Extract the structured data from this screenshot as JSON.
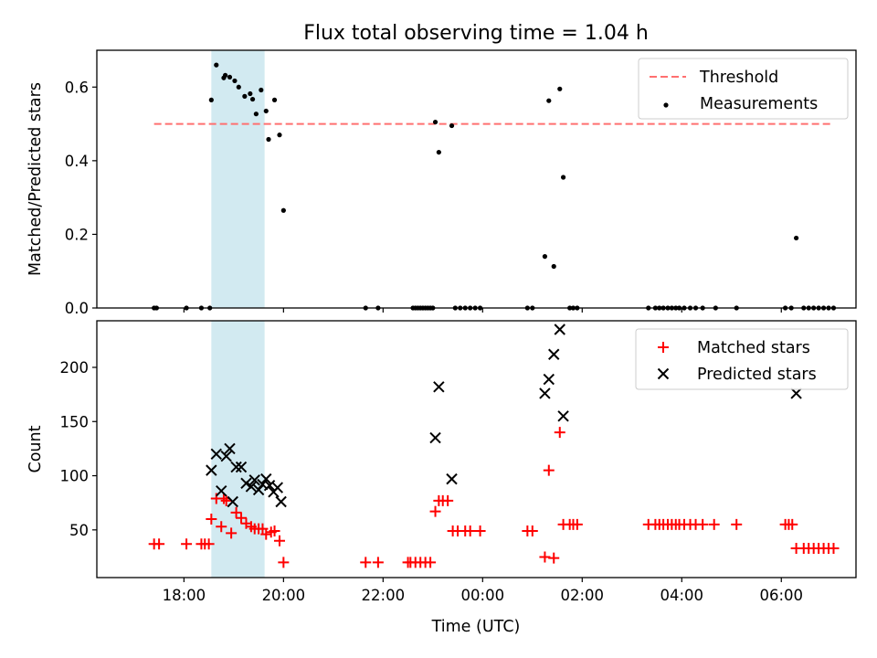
{
  "chart_data": {
    "title": "Flux total observing time = 1.04 h",
    "xlabel": "Time (UTC)",
    "x_unit": "hours since 00:00 UTC (negative = previous evening)",
    "x_range": [
      -7.75,
      7.5
    ],
    "x_ticks": [
      -6,
      -4,
      -2,
      0,
      2,
      4,
      6
    ],
    "x_tick_labels": [
      "18:00",
      "20:00",
      "22:00",
      "00:00",
      "02:00",
      "04:00",
      "06:00"
    ],
    "highlight_span": [
      -5.45,
      -4.38
    ],
    "highlight_color": "#add8e6",
    "panels": [
      {
        "id": "top",
        "type": "scatter",
        "ylabel": "Matched/Predicted stars",
        "ylim": [
          0,
          0.7
        ],
        "yticks": [
          0.0,
          0.2,
          0.4,
          0.6
        ],
        "ytick_labels": [
          "0.0",
          "0.2",
          "0.4",
          "0.6"
        ],
        "legend": {
          "position": "top-right",
          "entries": [
            {
              "label": "Threshold",
              "style": "dashed-line",
              "color": "#ff7070"
            },
            {
              "label": "Measurements",
              "style": "dot",
              "color": "#000000"
            }
          ]
        },
        "threshold": {
          "label": "Threshold",
          "y": 0.5,
          "x_from": -6.6,
          "x_to": 7.0,
          "color": "#ff7070"
        },
        "measurements": {
          "label": "Measurements",
          "color": "#000000",
          "points": [
            [
              -6.6,
              0
            ],
            [
              -6.55,
              0
            ],
            [
              -5.95,
              0
            ],
            [
              -5.65,
              0
            ],
            [
              -5.48,
              0
            ],
            [
              -5.45,
              0.565
            ],
            [
              -5.35,
              0.66
            ],
            [
              -5.2,
              0.625
            ],
            [
              -5.17,
              0.632
            ],
            [
              -5.08,
              0.627
            ],
            [
              -4.98,
              0.617
            ],
            [
              -4.9,
              0.6
            ],
            [
              -4.78,
              0.575
            ],
            [
              -4.67,
              0.582
            ],
            [
              -4.62,
              0.567
            ],
            [
              -4.55,
              0.527
            ],
            [
              -4.45,
              0.592
            ],
            [
              -4.35,
              0.535
            ],
            [
              -4.3,
              0.458
            ],
            [
              -4.18,
              0.565
            ],
            [
              -4.08,
              0.47
            ],
            [
              -4.0,
              0.265
            ],
            [
              -2.35,
              0
            ],
            [
              -2.1,
              0
            ],
            [
              -1.4,
              0
            ],
            [
              -1.35,
              0
            ],
            [
              -1.3,
              0
            ],
            [
              -1.25,
              0
            ],
            [
              -1.2,
              0
            ],
            [
              -1.15,
              0
            ],
            [
              -1.1,
              0
            ],
            [
              -1.05,
              0
            ],
            [
              -1.0,
              0
            ],
            [
              -0.95,
              0.505
            ],
            [
              -0.88,
              0.423
            ],
            [
              -0.62,
              0.495
            ],
            [
              -0.55,
              0
            ],
            [
              -0.45,
              0
            ],
            [
              -0.35,
              0
            ],
            [
              -0.25,
              0
            ],
            [
              -0.15,
              0
            ],
            [
              -0.05,
              0
            ],
            [
              0.9,
              0
            ],
            [
              1.0,
              0
            ],
            [
              1.25,
              0.14
            ],
            [
              1.33,
              0.563
            ],
            [
              1.43,
              0.113
            ],
            [
              1.55,
              0.595
            ],
            [
              1.62,
              0.355
            ],
            [
              1.75,
              0
            ],
            [
              1.82,
              0
            ],
            [
              1.9,
              0
            ],
            [
              3.33,
              0
            ],
            [
              3.47,
              0
            ],
            [
              3.55,
              0
            ],
            [
              3.63,
              0
            ],
            [
              3.72,
              0
            ],
            [
              3.8,
              0
            ],
            [
              3.88,
              0
            ],
            [
              3.95,
              0
            ],
            [
              4.05,
              0
            ],
            [
              4.17,
              0
            ],
            [
              4.28,
              0
            ],
            [
              4.42,
              0
            ],
            [
              4.68,
              0
            ],
            [
              5.1,
              0
            ],
            [
              6.08,
              0
            ],
            [
              6.2,
              0
            ],
            [
              6.3,
              0.19
            ],
            [
              6.45,
              0
            ],
            [
              6.55,
              0
            ],
            [
              6.65,
              0
            ],
            [
              6.75,
              0
            ],
            [
              6.85,
              0
            ],
            [
              6.95,
              0
            ],
            [
              7.05,
              0
            ]
          ]
        }
      },
      {
        "id": "bottom",
        "type": "scatter",
        "ylabel": "Count",
        "ylim": [
          6,
          243
        ],
        "yticks": [
          50,
          100,
          150,
          200
        ],
        "ytick_labels": [
          "50",
          "100",
          "150",
          "200"
        ],
        "legend": {
          "position": "top-right",
          "entries": [
            {
              "label": "Matched stars",
              "style": "plus",
              "color": "#ff0000"
            },
            {
              "label": "Predicted stars",
              "style": "x",
              "color": "#000000"
            }
          ]
        },
        "series": [
          {
            "name": "Matched stars",
            "marker": "plus",
            "color": "#ff0000",
            "points": [
              [
                -6.6,
                37
              ],
              [
                -6.5,
                37
              ],
              [
                -5.95,
                37
              ],
              [
                -5.65,
                37
              ],
              [
                -5.58,
                37
              ],
              [
                -5.5,
                37
              ],
              [
                -5.45,
                60
              ],
              [
                -5.35,
                79
              ],
              [
                -5.25,
                53
              ],
              [
                -5.2,
                79
              ],
              [
                -5.15,
                77
              ],
              [
                -5.05,
                47
              ],
              [
                -4.95,
                66
              ],
              [
                -4.85,
                61
              ],
              [
                -4.75,
                56
              ],
              [
                -4.65,
                53
              ],
              [
                -4.58,
                51
              ],
              [
                -4.5,
                51
              ],
              [
                -4.42,
                51
              ],
              [
                -4.35,
                46
              ],
              [
                -4.25,
                48
              ],
              [
                -4.18,
                49
              ],
              [
                -4.08,
                40
              ],
              [
                -4.0,
                20
              ],
              [
                -2.35,
                20
              ],
              [
                -2.1,
                20
              ],
              [
                -1.5,
                20
              ],
              [
                -1.45,
                20
              ],
              [
                -1.35,
                20
              ],
              [
                -1.25,
                20
              ],
              [
                -1.15,
                20
              ],
              [
                -1.05,
                20
              ],
              [
                -0.95,
                67
              ],
              [
                -0.88,
                77
              ],
              [
                -0.8,
                77
              ],
              [
                -0.7,
                77
              ],
              [
                -0.6,
                49
              ],
              [
                -0.5,
                49
              ],
              [
                -0.35,
                49
              ],
              [
                -0.25,
                49
              ],
              [
                -0.05,
                49
              ],
              [
                0.9,
                49
              ],
              [
                1.0,
                49
              ],
              [
                1.25,
                25
              ],
              [
                1.33,
                105
              ],
              [
                1.43,
                24
              ],
              [
                1.55,
                140
              ],
              [
                1.62,
                55
              ],
              [
                1.75,
                55
              ],
              [
                1.82,
                55
              ],
              [
                1.9,
                55
              ],
              [
                3.33,
                55
              ],
              [
                3.47,
                55
              ],
              [
                3.55,
                55
              ],
              [
                3.63,
                55
              ],
              [
                3.72,
                55
              ],
              [
                3.8,
                55
              ],
              [
                3.88,
                55
              ],
              [
                3.95,
                55
              ],
              [
                4.05,
                55
              ],
              [
                4.17,
                55
              ],
              [
                4.28,
                55
              ],
              [
                4.42,
                55
              ],
              [
                4.65,
                55
              ],
              [
                5.1,
                55
              ],
              [
                6.08,
                55
              ],
              [
                6.15,
                55
              ],
              [
                6.22,
                55
              ],
              [
                6.3,
                33
              ],
              [
                6.45,
                33
              ],
              [
                6.55,
                33
              ],
              [
                6.65,
                33
              ],
              [
                6.75,
                33
              ],
              [
                6.85,
                33
              ],
              [
                6.95,
                33
              ],
              [
                7.05,
                33
              ]
            ]
          },
          {
            "name": "Predicted stars",
            "marker": "x",
            "color": "#000000",
            "points": [
              [
                -5.45,
                105
              ],
              [
                -5.35,
                120
              ],
              [
                -5.25,
                86
              ],
              [
                -5.15,
                118
              ],
              [
                -5.08,
                125
              ],
              [
                -5.02,
                76
              ],
              [
                -4.95,
                108
              ],
              [
                -4.85,
                108
              ],
              [
                -4.75,
                93
              ],
              [
                -4.65,
                90
              ],
              [
                -4.58,
                96
              ],
              [
                -4.5,
                87
              ],
              [
                -4.42,
                92
              ],
              [
                -4.35,
                97
              ],
              [
                -4.28,
                91
              ],
              [
                -4.2,
                85
              ],
              [
                -4.12,
                89
              ],
              [
                -4.05,
                76
              ],
              [
                -0.95,
                135
              ],
              [
                -0.88,
                182
              ],
              [
                -0.62,
                97
              ],
              [
                1.25,
                176
              ],
              [
                1.33,
                189
              ],
              [
                1.43,
                212
              ],
              [
                1.55,
                235
              ],
              [
                1.62,
                155
              ],
              [
                6.3,
                176
              ]
            ]
          }
        ]
      }
    ]
  }
}
